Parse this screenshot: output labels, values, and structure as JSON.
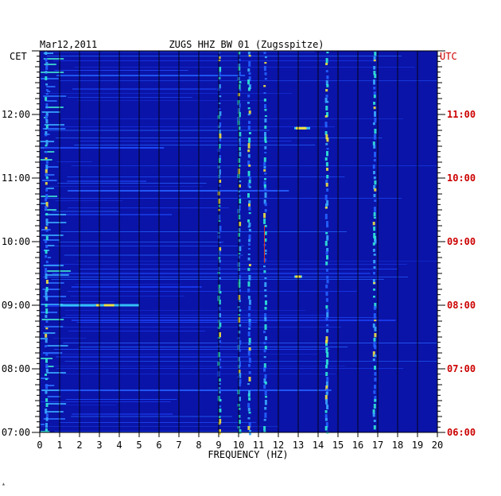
{
  "chart_data": {
    "type": "heatmap",
    "date": "Mar12,2011",
    "title": "ZUGS HHZ BW 01 (Zugsspitze)",
    "left_axis_label": "CET",
    "right_axis_label": "UTC",
    "xlabel": "FREQUENCY (HZ)",
    "x_ticks": [
      "0",
      "1",
      "2",
      "3",
      "4",
      "5",
      "6",
      "7",
      "8",
      "9",
      "10",
      "11",
      "12",
      "13",
      "14",
      "15",
      "16",
      "17",
      "18",
      "19",
      "20"
    ],
    "xlim": [
      0,
      20
    ],
    "cet_ticks": [
      "07:00",
      "08:00",
      "09:00",
      "10:00",
      "11:00",
      "12:00"
    ],
    "utc_ticks": [
      "06:00",
      "07:00",
      "08:00",
      "09:00",
      "10:00",
      "11:00"
    ],
    "time_range_cet": [
      "07:00",
      "13:00"
    ],
    "grid": true,
    "colormap": "blue background with cyan/yellow/red high-energy streaks",
    "background_color": "#0a14a8",
    "utc_color": "#cc0000",
    "persistent_bands_hz": [
      0.3,
      9.0,
      10.0,
      10.5,
      11.3,
      14.4,
      16.8
    ],
    "notable_events": [
      {
        "time_cet": "09:00",
        "freq_range_hz": [
          1,
          5
        ]
      },
      {
        "time_cet": "11:47",
        "freq_range_hz": [
          12.8,
          13.6
        ]
      },
      {
        "time_cet": "09:27",
        "freq_range_hz": [
          12.8,
          13.2
        ]
      }
    ]
  }
}
